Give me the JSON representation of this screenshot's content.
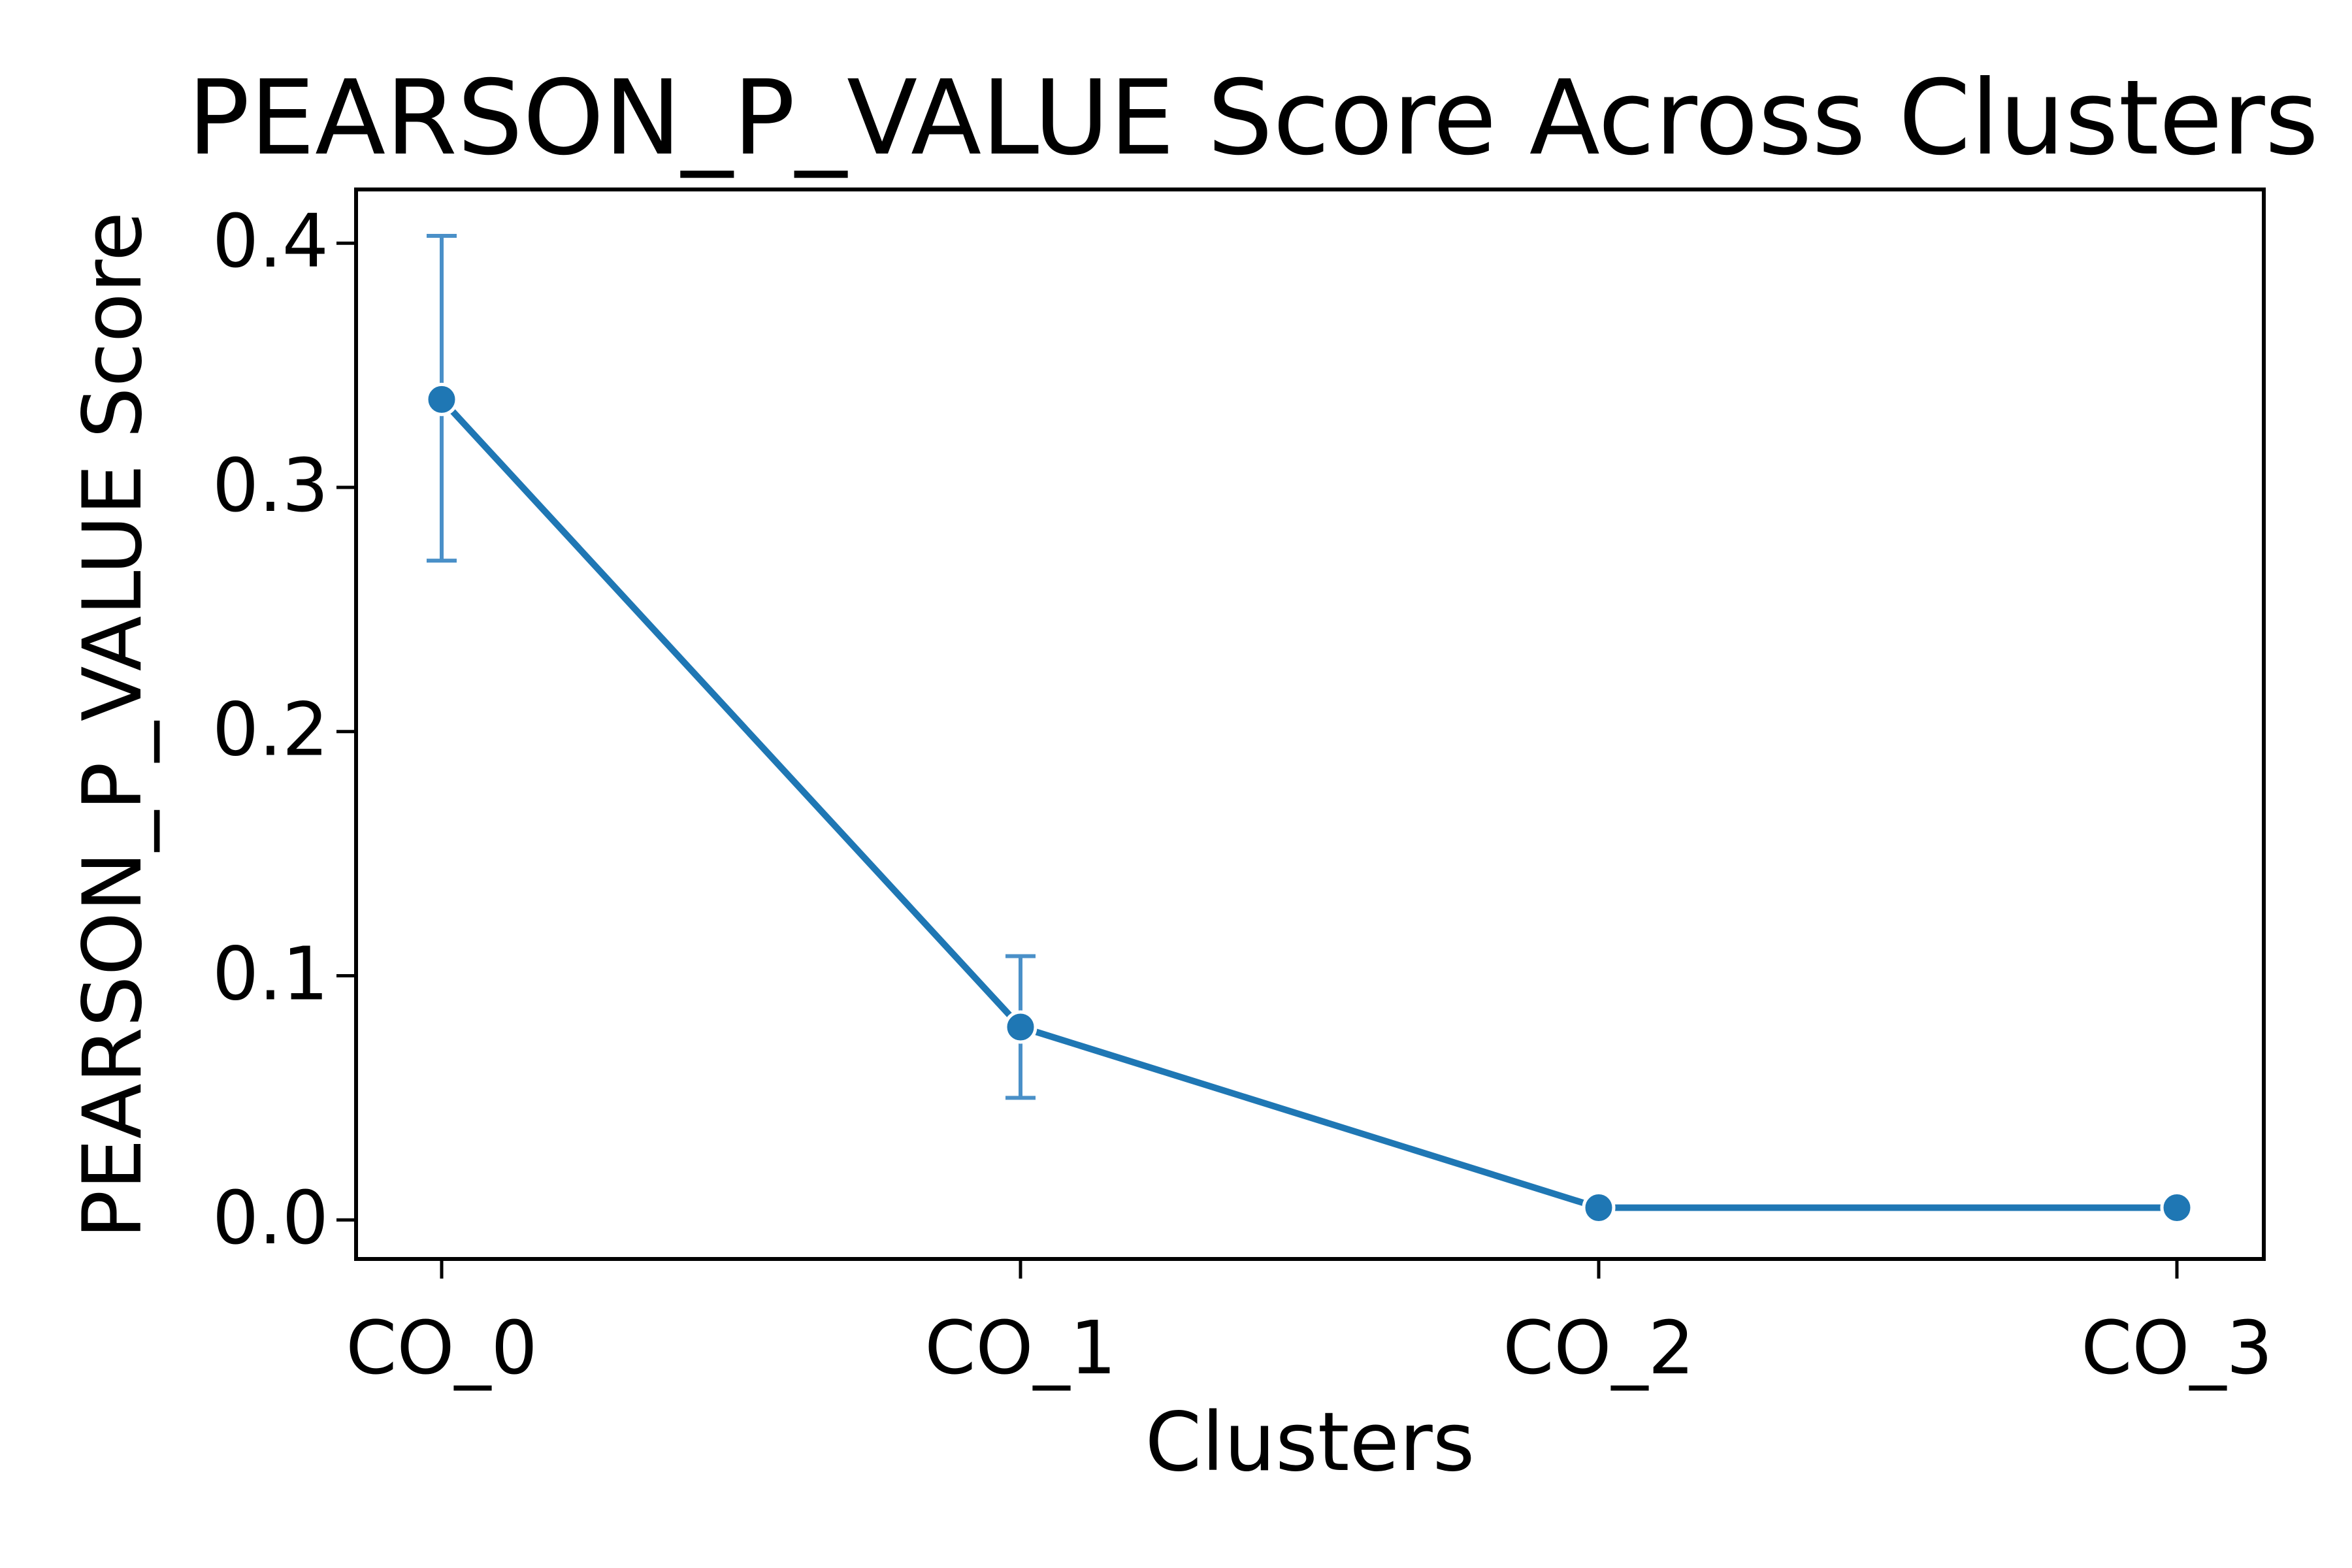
{
  "chart_data": {
    "type": "line",
    "title": "PEARSON_P_VALUE Score Across Clusters",
    "xlabel": "Clusters",
    "ylabel": "PEARSON_P_VALUE Score",
    "categories": [
      "CO_0",
      "CO_1",
      "CO_2",
      "CO_3"
    ],
    "series": [
      {
        "values": [
          0.336,
          0.079,
          0.005,
          0.005
        ],
        "error_low": [
          0.27,
          0.05,
          0.003,
          0.003
        ],
        "error_high": [
          0.403,
          0.108,
          0.007,
          0.007
        ]
      }
    ],
    "ylim": [
      -0.016,
      0.422
    ],
    "yticks": [
      0.0,
      0.1,
      0.2,
      0.3,
      0.4
    ],
    "ytick_labels": [
      "0.0",
      "0.1",
      "0.2",
      "0.3",
      "0.4"
    ],
    "grid": false,
    "legend": "none",
    "colors": {
      "line": "#1f77b4",
      "errorbar": "#4a90c8",
      "axes": "#000000"
    }
  }
}
